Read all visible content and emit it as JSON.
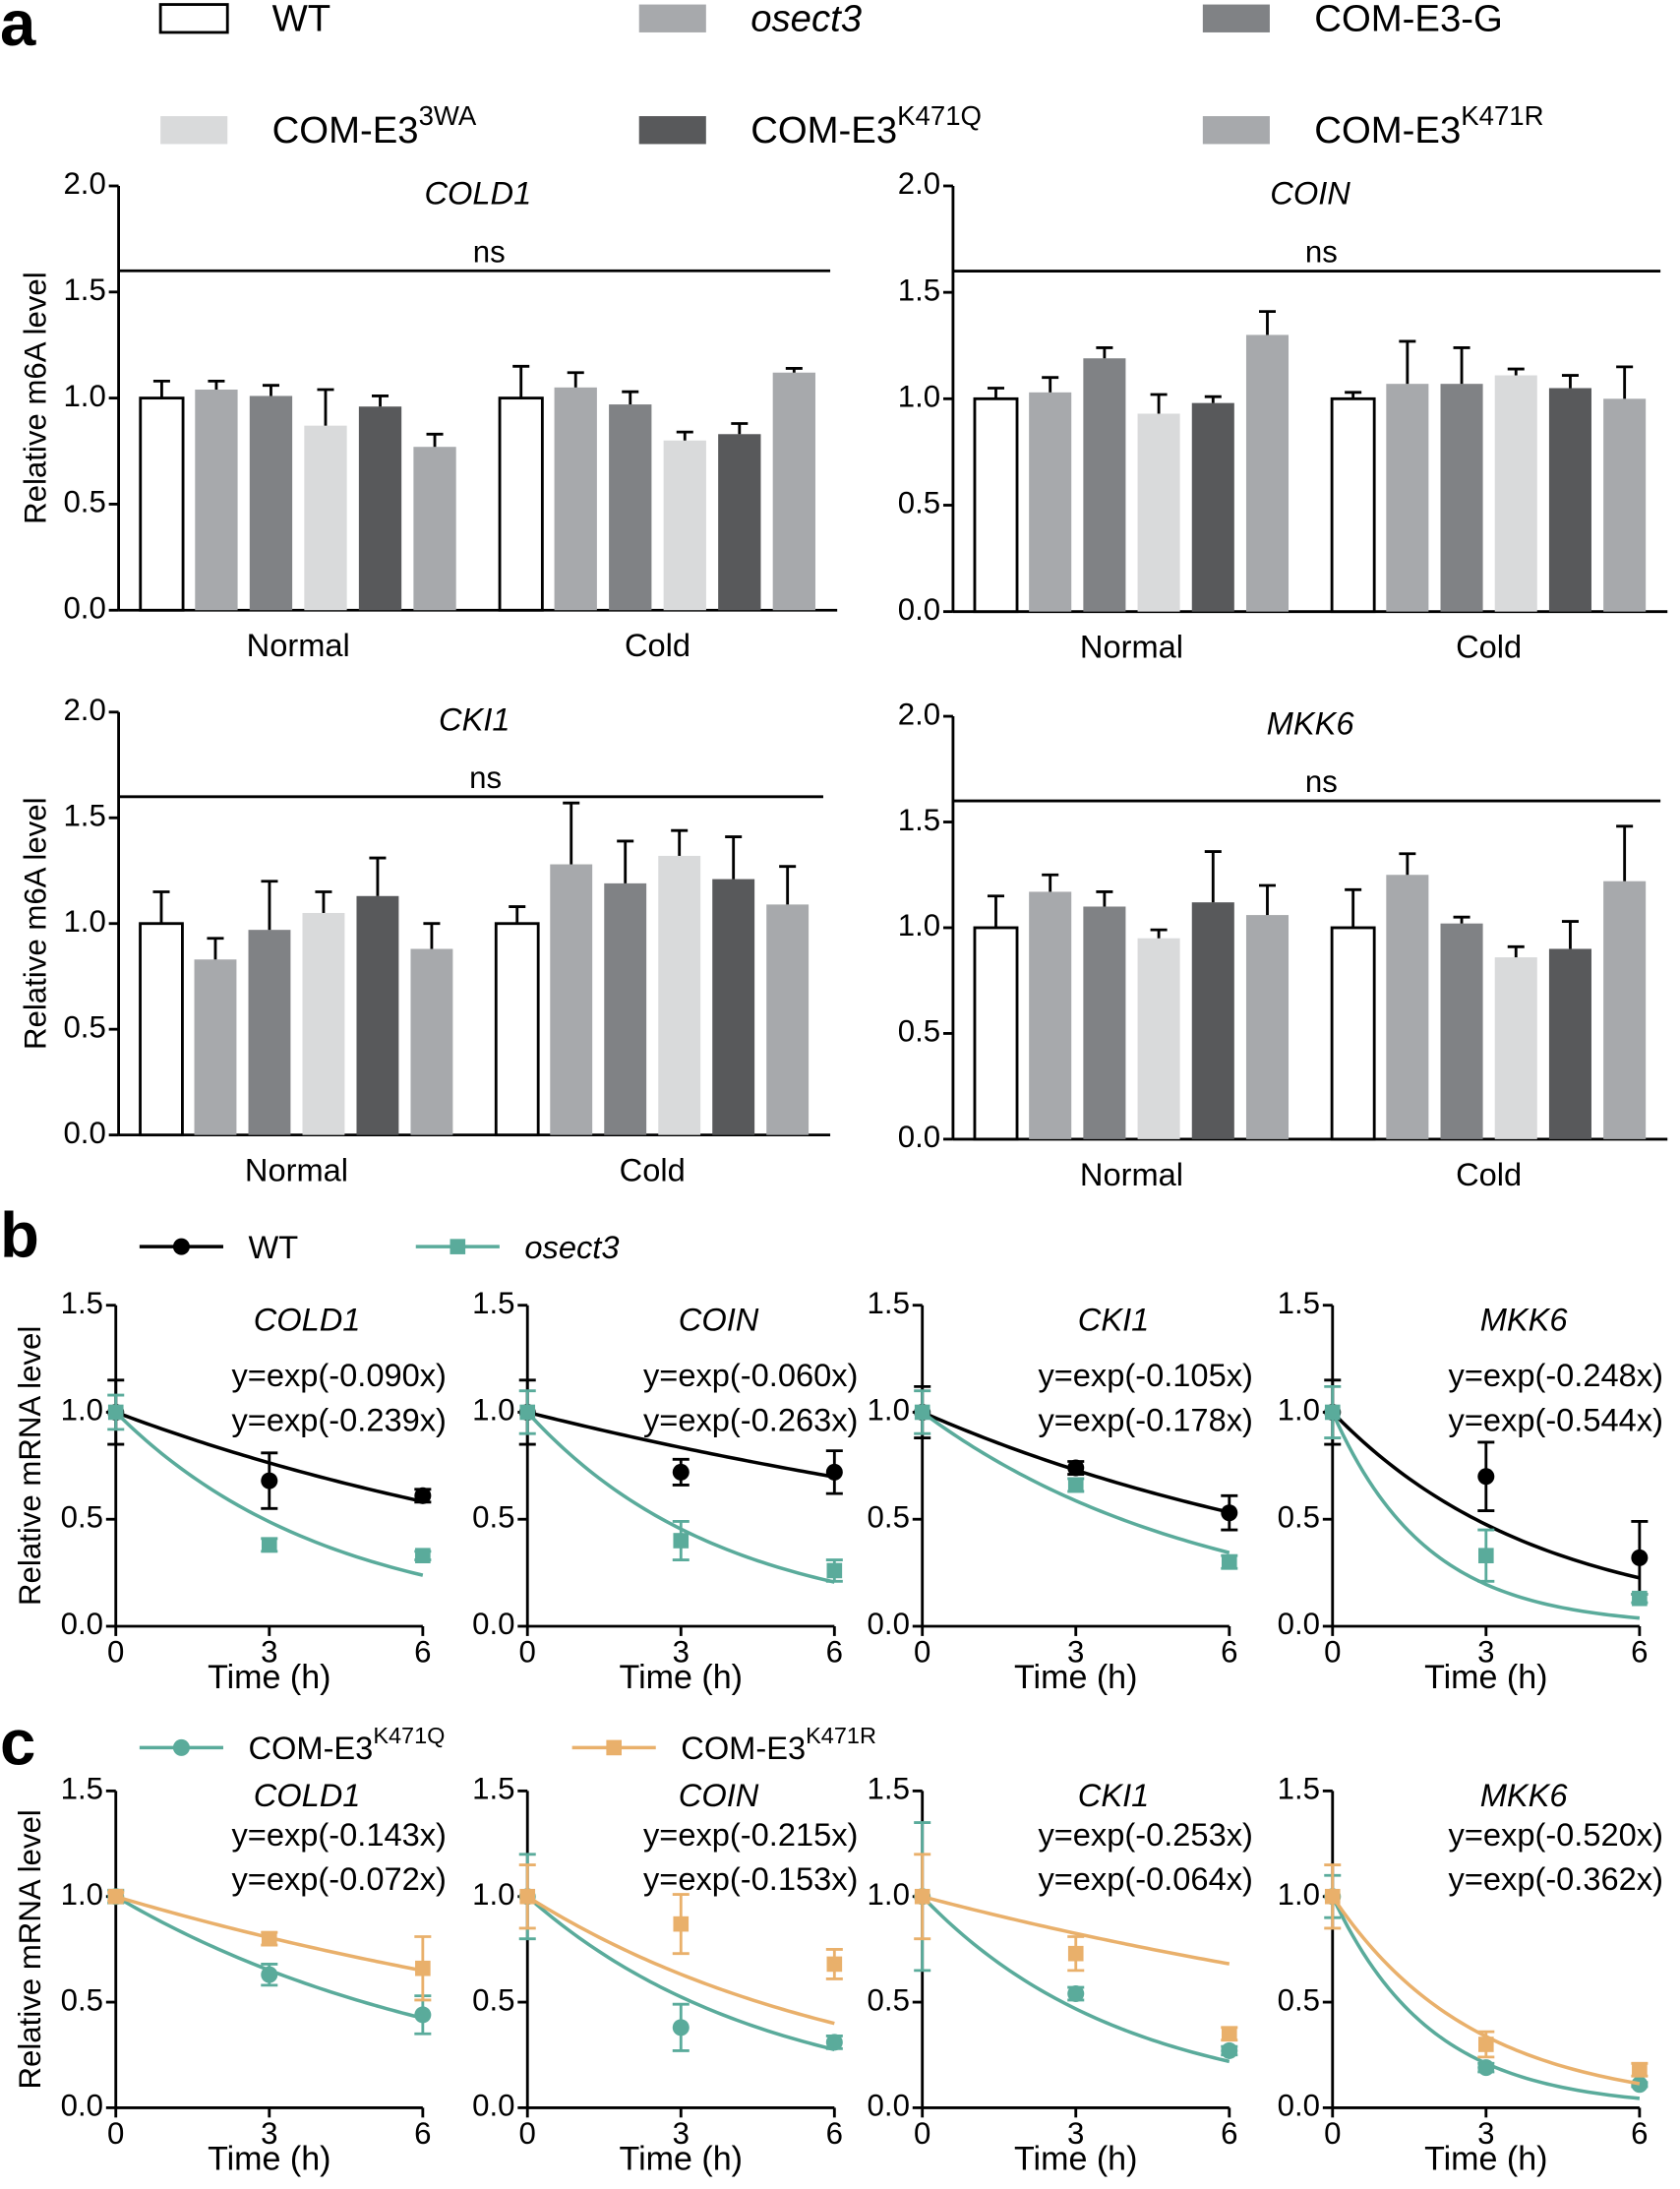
{
  "chart_data": [
    {
      "type": "bar",
      "panel": "a",
      "title": "COLD1",
      "ylabel": "Relative m6A level",
      "annotation": "ns",
      "categories": [
        "Normal",
        "Cold"
      ],
      "ylim": [
        0,
        2
      ],
      "yticks": [
        {
          "value": 0,
          "label": "0.0"
        },
        {
          "value": 0.5,
          "label": "0.5"
        },
        {
          "value": 1,
          "label": "1.0"
        },
        {
          "value": 1.5,
          "label": "1.5"
        },
        {
          "value": 2,
          "label": "2.0"
        }
      ],
      "series": [
        {
          "name": "WT",
          "color": "#ffffff",
          "values": [
            1.0,
            1.0
          ],
          "errors": [
            0.08,
            0.15
          ]
        },
        {
          "name": "osect3",
          "italic": true,
          "color": "#a7a9ac",
          "values": [
            1.04,
            1.05
          ],
          "errors": [
            0.04,
            0.07
          ]
        },
        {
          "name": "COM-E3-G",
          "color": "#808285",
          "values": [
            1.01,
            0.97
          ],
          "errors": [
            0.05,
            0.06
          ]
        },
        {
          "name": "COM-E3",
          "name_sup": "3WA",
          "color": "#d9dadb",
          "values": [
            0.87,
            0.8
          ],
          "errors": [
            0.17,
            0.04
          ]
        },
        {
          "name": "COM-E3",
          "name_sup": "K471Q",
          "color": "#58595b",
          "values": [
            0.96,
            0.83
          ],
          "errors": [
            0.05,
            0.05
          ]
        },
        {
          "name": "COM-E3",
          "name_sup": "K471R",
          "color": "#a7a9ac",
          "values": [
            0.77,
            1.12
          ],
          "errors": [
            0.06,
            0.02
          ]
        }
      ]
    },
    {
      "type": "bar",
      "title": "COIN",
      "annotation": "ns",
      "categories": [
        "Normal",
        "Cold"
      ],
      "ylim": [
        0,
        2
      ],
      "yticks": [
        {
          "value": 0,
          "label": "0.0"
        },
        {
          "value": 0.5,
          "label": "0.5"
        },
        {
          "value": 1,
          "label": "1.0"
        },
        {
          "value": 1.5,
          "label": "1.5"
        },
        {
          "value": 2,
          "label": "2.0"
        }
      ],
      "series": [
        {
          "color": "#ffffff",
          "values": [
            1.0,
            1.0
          ],
          "errors": [
            0.05,
            0.03
          ]
        },
        {
          "color": "#a7a9ac",
          "values": [
            1.03,
            1.07
          ],
          "errors": [
            0.07,
            0.2
          ]
        },
        {
          "color": "#808285",
          "values": [
            1.19,
            1.07
          ],
          "errors": [
            0.05,
            0.17
          ]
        },
        {
          "color": "#d9dadb",
          "values": [
            0.93,
            1.11
          ],
          "errors": [
            0.09,
            0.03
          ]
        },
        {
          "color": "#58595b",
          "values": [
            0.98,
            1.05
          ],
          "errors": [
            0.03,
            0.06
          ]
        },
        {
          "color": "#a7a9ac",
          "values": [
            1.3,
            1.0
          ],
          "errors": [
            0.11,
            0.15
          ]
        }
      ]
    },
    {
      "type": "bar",
      "title": "CKI1",
      "ylabel": "Relative m6A level",
      "annotation": "ns",
      "categories": [
        "Normal",
        "Cold"
      ],
      "ylim": [
        0,
        2
      ],
      "yticks": [
        {
          "value": 0,
          "label": "0.0"
        },
        {
          "value": 0.5,
          "label": "0.5"
        },
        {
          "value": 1,
          "label": "1.0"
        },
        {
          "value": 1.5,
          "label": "1.5"
        },
        {
          "value": 2,
          "label": "2.0"
        }
      ],
      "series": [
        {
          "color": "#ffffff",
          "values": [
            1.0,
            1.0
          ],
          "errors": [
            0.15,
            0.08
          ]
        },
        {
          "color": "#a7a9ac",
          "values": [
            0.83,
            1.28
          ],
          "errors": [
            0.1,
            0.29
          ]
        },
        {
          "color": "#808285",
          "values": [
            0.97,
            1.19
          ],
          "errors": [
            0.23,
            0.2
          ]
        },
        {
          "color": "#d9dadb",
          "values": [
            1.05,
            1.32
          ],
          "errors": [
            0.1,
            0.12
          ]
        },
        {
          "color": "#58595b",
          "values": [
            1.13,
            1.21
          ],
          "errors": [
            0.18,
            0.2
          ]
        },
        {
          "color": "#a7a9ac",
          "values": [
            0.88,
            1.09
          ],
          "errors": [
            0.12,
            0.18
          ]
        }
      ]
    },
    {
      "type": "bar",
      "title": "MKK6",
      "annotation": "ns",
      "categories": [
        "Normal",
        "Cold"
      ],
      "ylim": [
        0,
        2
      ],
      "yticks": [
        {
          "value": 0,
          "label": "0.0"
        },
        {
          "value": 0.5,
          "label": "0.5"
        },
        {
          "value": 1,
          "label": "1.0"
        },
        {
          "value": 1.5,
          "label": "1.5"
        },
        {
          "value": 2,
          "label": "2.0"
        }
      ],
      "series": [
        {
          "color": "#ffffff",
          "values": [
            1.0,
            1.0
          ],
          "errors": [
            0.15,
            0.18
          ]
        },
        {
          "color": "#a7a9ac",
          "values": [
            1.17,
            1.25
          ],
          "errors": [
            0.08,
            0.1
          ]
        },
        {
          "color": "#808285",
          "values": [
            1.1,
            1.02
          ],
          "errors": [
            0.07,
            0.03
          ]
        },
        {
          "color": "#d9dadb",
          "values": [
            0.95,
            0.86
          ],
          "errors": [
            0.04,
            0.05
          ]
        },
        {
          "color": "#58595b",
          "values": [
            1.12,
            0.9
          ],
          "errors": [
            0.24,
            0.13
          ]
        },
        {
          "color": "#a7a9ac",
          "values": [
            1.06,
            1.22
          ],
          "errors": [
            0.14,
            0.26
          ]
        }
      ]
    },
    {
      "type": "line",
      "panel": "b",
      "title": "COLD1",
      "ylabel": "Relative mRNA level",
      "xlabel": "Time (h)",
      "x": [
        0,
        3,
        6
      ],
      "xlim": [
        0,
        6
      ],
      "xticks": [
        0,
        3,
        6
      ],
      "ylim": [
        0,
        1.5
      ],
      "yticks": [
        {
          "value": 0,
          "label": "0.0"
        },
        {
          "value": 0.5,
          "label": "0.5"
        },
        {
          "value": 1,
          "label": "1.0"
        },
        {
          "value": 1.5,
          "label": "1.5"
        }
      ],
      "series": [
        {
          "name": "WT",
          "marker": "circle",
          "color": "#000000",
          "values": [
            1.0,
            0.68,
            0.61
          ],
          "errors": [
            0.15,
            0.13,
            0.03
          ],
          "fit_rate": -0.09,
          "fit_label": "y=exp(-0.090x)"
        },
        {
          "name": "osect3",
          "italic": true,
          "marker": "square",
          "color": "#5aab9b",
          "values": [
            1.0,
            0.38,
            0.33
          ],
          "errors": [
            0.08,
            0.03,
            0.02
          ],
          "fit_rate": -0.239,
          "fit_label": "y=exp(-0.239x)"
        }
      ]
    },
    {
      "type": "line",
      "title": "COIN",
      "xlabel": "Time (h)",
      "x": [
        0,
        3,
        6
      ],
      "xlim": [
        0,
        6
      ],
      "xticks": [
        0,
        3,
        6
      ],
      "ylim": [
        0,
        1.5
      ],
      "yticks": [
        {
          "value": 0,
          "label": "0.0"
        },
        {
          "value": 0.5,
          "label": "0.5"
        },
        {
          "value": 1,
          "label": "1.0"
        },
        {
          "value": 1.5,
          "label": "1.5"
        }
      ],
      "series": [
        {
          "marker": "circle",
          "color": "#000000",
          "values": [
            1.0,
            0.72,
            0.72
          ],
          "errors": [
            0.15,
            0.06,
            0.1
          ],
          "fit_rate": -0.06,
          "fit_label": "y=exp(-0.060x)"
        },
        {
          "marker": "square",
          "color": "#5aab9b",
          "values": [
            1.0,
            0.4,
            0.26
          ],
          "errors": [
            0.1,
            0.09,
            0.05
          ],
          "fit_rate": -0.263,
          "fit_label": "y=exp(-0.263x)"
        }
      ]
    },
    {
      "type": "line",
      "title": "CKI1",
      "xlabel": "Time (h)",
      "x": [
        0,
        3,
        6
      ],
      "xlim": [
        0,
        6
      ],
      "xticks": [
        0,
        3,
        6
      ],
      "ylim": [
        0,
        1.5
      ],
      "yticks": [
        {
          "value": 0,
          "label": "0.0"
        },
        {
          "value": 0.5,
          "label": "0.5"
        },
        {
          "value": 1,
          "label": "1.0"
        },
        {
          "value": 1.5,
          "label": "1.5"
        }
      ],
      "series": [
        {
          "marker": "circle",
          "color": "#000000",
          "values": [
            1.0,
            0.74,
            0.53
          ],
          "errors": [
            0.12,
            0.03,
            0.08
          ],
          "fit_rate": -0.105,
          "fit_label": "y=exp(-0.105x)"
        },
        {
          "marker": "square",
          "color": "#5aab9b",
          "values": [
            1.0,
            0.66,
            0.3
          ],
          "errors": [
            0.1,
            0.03,
            0.03
          ],
          "fit_rate": -0.178,
          "fit_label": "y=exp(-0.178x)"
        }
      ]
    },
    {
      "type": "line",
      "title": "MKK6",
      "xlabel": "Time (h)",
      "x": [
        0,
        3,
        6
      ],
      "xlim": [
        0,
        6
      ],
      "xticks": [
        0,
        3,
        6
      ],
      "ylim": [
        0,
        1.5
      ],
      "yticks": [
        {
          "value": 0,
          "label": "0.0"
        },
        {
          "value": 0.5,
          "label": "0.5"
        },
        {
          "value": 1,
          "label": "1.0"
        },
        {
          "value": 1.5,
          "label": "1.5"
        }
      ],
      "series": [
        {
          "marker": "circle",
          "color": "#000000",
          "values": [
            1.0,
            0.7,
            0.32
          ],
          "errors": [
            0.15,
            0.16,
            0.17
          ],
          "fit_rate": -0.248,
          "fit_label": "y=exp(-0.248x)"
        },
        {
          "marker": "square",
          "color": "#5aab9b",
          "values": [
            1.0,
            0.33,
            0.13
          ],
          "errors": [
            0.12,
            0.12,
            0.02
          ],
          "fit_rate": -0.544,
          "fit_label": "y=exp(-0.544x)"
        }
      ]
    },
    {
      "type": "line",
      "panel": "c",
      "title": "COLD1",
      "ylabel": "Relative mRNA level",
      "xlabel": "Time (h)",
      "x": [
        0,
        3,
        6
      ],
      "xlim": [
        0,
        6
      ],
      "xticks": [
        0,
        3,
        6
      ],
      "ylim": [
        0,
        1.5
      ],
      "yticks": [
        {
          "value": 0,
          "label": "0.0"
        },
        {
          "value": 0.5,
          "label": "0.5"
        },
        {
          "value": 1,
          "label": "1.0"
        },
        {
          "value": 1.5,
          "label": "1.5"
        }
      ],
      "series": [
        {
          "name": "COM-E3",
          "name_sup": "K471Q",
          "marker": "circle",
          "color": "#5aab9b",
          "values": [
            1.0,
            0.63,
            0.44
          ],
          "errors": [
            0.03,
            0.05,
            0.09
          ],
          "fit_rate": -0.143,
          "fit_label": "y=exp(-0.143x)"
        },
        {
          "name": "COM-E3",
          "name_sup": "K471R",
          "marker": "square",
          "color": "#e9b06b",
          "values": [
            1.0,
            0.8,
            0.66
          ],
          "errors": [
            0.02,
            0.03,
            0.15
          ],
          "fit_rate": -0.072,
          "fit_label": "y=exp(-0.072x)"
        }
      ]
    },
    {
      "type": "line",
      "title": "COIN",
      "xlabel": "Time (h)",
      "x": [
        0,
        3,
        6
      ],
      "xlim": [
        0,
        6
      ],
      "xticks": [
        0,
        3,
        6
      ],
      "ylim": [
        0,
        1.5
      ],
      "yticks": [
        {
          "value": 0,
          "label": "0.0"
        },
        {
          "value": 0.5,
          "label": "0.5"
        },
        {
          "value": 1,
          "label": "1.0"
        },
        {
          "value": 1.5,
          "label": "1.5"
        }
      ],
      "series": [
        {
          "marker": "circle",
          "color": "#5aab9b",
          "values": [
            1.0,
            0.38,
            0.31
          ],
          "errors": [
            0.2,
            0.11,
            0.03
          ],
          "fit_rate": -0.215,
          "fit_label": "y=exp(-0.215x)"
        },
        {
          "marker": "square",
          "color": "#e9b06b",
          "values": [
            1.0,
            0.87,
            0.68
          ],
          "errors": [
            0.15,
            0.14,
            0.07
          ],
          "fit_rate": -0.153,
          "fit_label": "y=exp(-0.153x)"
        }
      ]
    },
    {
      "type": "line",
      "title": "CKI1",
      "xlabel": "Time (h)",
      "x": [
        0,
        3,
        6
      ],
      "xlim": [
        0,
        6
      ],
      "xticks": [
        0,
        3,
        6
      ],
      "ylim": [
        0,
        1.5
      ],
      "yticks": [
        {
          "value": 0,
          "label": "0.0"
        },
        {
          "value": 0.5,
          "label": "0.5"
        },
        {
          "value": 1,
          "label": "1.0"
        },
        {
          "value": 1.5,
          "label": "1.5"
        }
      ],
      "series": [
        {
          "marker": "circle",
          "color": "#5aab9b",
          "values": [
            1.0,
            0.54,
            0.27
          ],
          "errors": [
            0.35,
            0.03,
            0.02
          ],
          "fit_rate": -0.253,
          "fit_label": "y=exp(-0.253x)"
        },
        {
          "marker": "square",
          "color": "#e9b06b",
          "values": [
            1.0,
            0.73,
            0.35
          ],
          "errors": [
            0.2,
            0.08,
            0.03
          ],
          "fit_rate": -0.064,
          "fit_label": "y=exp(-0.064x)"
        }
      ]
    },
    {
      "type": "line",
      "title": "MKK6",
      "xlabel": "Time (h)",
      "x": [
        0,
        3,
        6
      ],
      "xlim": [
        0,
        6
      ],
      "xticks": [
        0,
        3,
        6
      ],
      "ylim": [
        0,
        1.5
      ],
      "yticks": [
        {
          "value": 0,
          "label": "0.0"
        },
        {
          "value": 0.5,
          "label": "0.5"
        },
        {
          "value": 1,
          "label": "1.0"
        },
        {
          "value": 1.5,
          "label": "1.5"
        }
      ],
      "series": [
        {
          "marker": "circle",
          "color": "#5aab9b",
          "values": [
            1.0,
            0.19,
            0.11
          ],
          "errors": [
            0.1,
            0.02,
            0.01
          ],
          "fit_rate": -0.52,
          "fit_label": "y=exp(-0.520x)"
        },
        {
          "marker": "square",
          "color": "#e9b06b",
          "values": [
            1.0,
            0.3,
            0.18
          ],
          "errors": [
            0.15,
            0.06,
            0.03
          ],
          "fit_rate": -0.362,
          "fit_label": "y=exp(-0.362x)"
        }
      ]
    }
  ]
}
